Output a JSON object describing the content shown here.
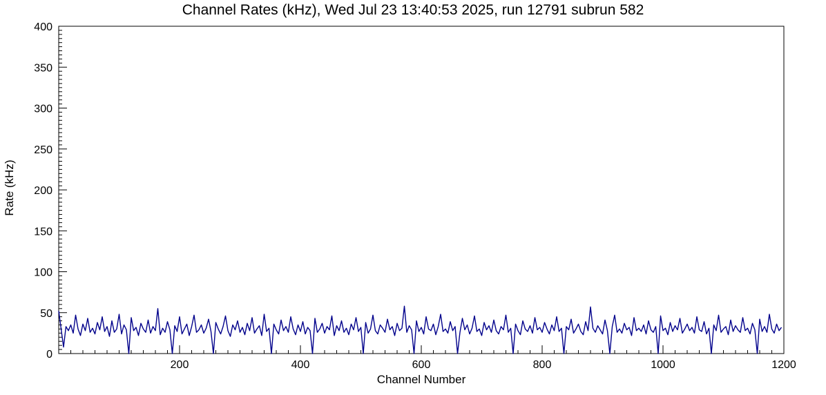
{
  "chart_data": {
    "type": "line",
    "title": "Channel Rates (kHz), Wed Jul 23 13:40:53 2025, run 12791 subrun 582",
    "xlabel": "Channel Number",
    "ylabel": "Rate (kHz)",
    "xlim": [
      0,
      1200
    ],
    "ylim": [
      0,
      400
    ],
    "xticks": [
      200,
      400,
      600,
      800,
      1000,
      1200
    ],
    "yticks": [
      0,
      50,
      100,
      150,
      200,
      250,
      300,
      350,
      400
    ],
    "x_minor_step": 20,
    "y_minor_step": 5,
    "grid": false,
    "legend": "none",
    "line_color": "#00008b",
    "frame_color": "#000000",
    "x_start": 0,
    "x_step": 4,
    "values": [
      52,
      30,
      8,
      33,
      28,
      35,
      25,
      47,
      30,
      22,
      36,
      28,
      43,
      26,
      31,
      24,
      38,
      29,
      45,
      27,
      33,
      21,
      40,
      26,
      30,
      48,
      24,
      35,
      29,
      0,
      44,
      28,
      32,
      22,
      37,
      30,
      26,
      41,
      25,
      33,
      28,
      55,
      23,
      31,
      26,
      39,
      29,
      0,
      34,
      27,
      45,
      24,
      30,
      36,
      22,
      33,
      47,
      26,
      29,
      35,
      25,
      31,
      42,
      27,
      0,
      38,
      30,
      24,
      33,
      46,
      28,
      21,
      35,
      29,
      40,
      26,
      32,
      23,
      37,
      28,
      44,
      25,
      30,
      34,
      22,
      48,
      27,
      31,
      0,
      36,
      29,
      24,
      41,
      28,
      33,
      26,
      45,
      30,
      23,
      35,
      27,
      39,
      24,
      32,
      28,
      0,
      43,
      26,
      30,
      37,
      25,
      33,
      29,
      46,
      22,
      34,
      28,
      40,
      26,
      31,
      23,
      36,
      29,
      44,
      27,
      32,
      0,
      38,
      25,
      30,
      47,
      28,
      24,
      35,
      31,
      26,
      42,
      29,
      33,
      22,
      37,
      28,
      31,
      58,
      26,
      34,
      29,
      0,
      40,
      27,
      32,
      24,
      45,
      30,
      28,
      36,
      23,
      33,
      48,
      27,
      30,
      25,
      39,
      28,
      33,
      0,
      26,
      43,
      29,
      35,
      24,
      31,
      46,
      27,
      30,
      22,
      38,
      29,
      34,
      26,
      41,
      28,
      24,
      33,
      29,
      47,
      26,
      31,
      0,
      36,
      28,
      23,
      40,
      30,
      27,
      34,
      25,
      44,
      29,
      32,
      26,
      38,
      30,
      24,
      35,
      28,
      45,
      27,
      31,
      0,
      33,
      29,
      42,
      25,
      30,
      36,
      27,
      23,
      39,
      28,
      57,
      31,
      26,
      34,
      29,
      24,
      41,
      28,
      0,
      33,
      47,
      26,
      30,
      25,
      37,
      29,
      32,
      22,
      44,
      28,
      31,
      27,
      35,
      24,
      40,
      29,
      26,
      33,
      0,
      46,
      28,
      31,
      23,
      38,
      27,
      34,
      29,
      43,
      25,
      30,
      36,
      28,
      32,
      25,
      45,
      29,
      27,
      39,
      24,
      31,
      0,
      35,
      28,
      47,
      26,
      30,
      33,
      23,
      41,
      27,
      34,
      29,
      26,
      44,
      28,
      31,
      24,
      37,
      29,
      0,
      42,
      27,
      33,
      26,
      48,
      30,
      25,
      36,
      28,
      32
    ]
  }
}
